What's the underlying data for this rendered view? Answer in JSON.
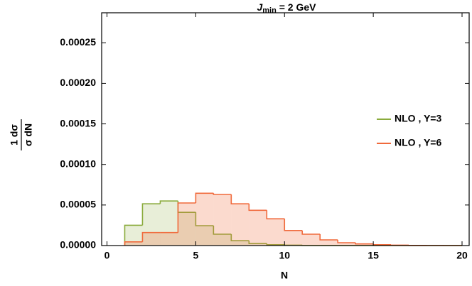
{
  "chart_data": {
    "type": "histogram",
    "title": {
      "symbol": "J",
      "subscript": "min",
      "rest": " = 2 GeV"
    },
    "xlabel": "N",
    "ylabel": {
      "numerator": "1  dσ",
      "denominator": "σ  dN"
    },
    "bins": [
      1,
      2,
      3,
      4,
      5,
      6,
      7,
      8,
      9,
      10,
      11,
      12,
      13,
      14,
      15,
      16,
      17,
      18,
      19,
      20
    ],
    "series": [
      {
        "name": "NLO , Y=3",
        "color": "#8aab3c",
        "fill": "rgba(138,171,60,0.2)",
        "values": [
          2.5e-05,
          5.15e-05,
          5.5e-05,
          4.1e-05,
          2.45e-05,
          1.4e-05,
          6e-06,
          2.5e-06,
          1e-06,
          5e-07,
          0,
          0,
          0,
          0,
          0,
          0,
          0,
          0,
          0
        ]
      },
      {
        "name": "NLO , Y=6",
        "color": "#f06a3c",
        "fill": "rgba(240,106,60,0.25)",
        "values": [
          4.5e-06,
          1.6e-05,
          1.6e-05,
          5.25e-05,
          6.45e-05,
          6.3e-05,
          5.15e-05,
          4.35e-05,
          3.3e-05,
          1.85e-05,
          1.4e-05,
          7e-06,
          3.5e-06,
          2e-06,
          1e-06,
          5e-07,
          2e-07,
          1e-07,
          0
        ]
      }
    ],
    "xlim": [
      -0.3,
      20.4
    ],
    "ylim": [
      0,
      0.000287
    ],
    "xticks": [
      0,
      5,
      10,
      15,
      20
    ],
    "yticks": [
      {
        "value": 0,
        "label": "0.00000"
      },
      {
        "value": 5e-05,
        "label": "0.00005"
      },
      {
        "value": 0.0001,
        "label": "0.00010"
      },
      {
        "value": 0.00015,
        "label": "0.00015"
      },
      {
        "value": 0.0002,
        "label": "0.00020"
      },
      {
        "value": 0.00025,
        "label": "0.00025"
      }
    ],
    "legend": "right"
  }
}
